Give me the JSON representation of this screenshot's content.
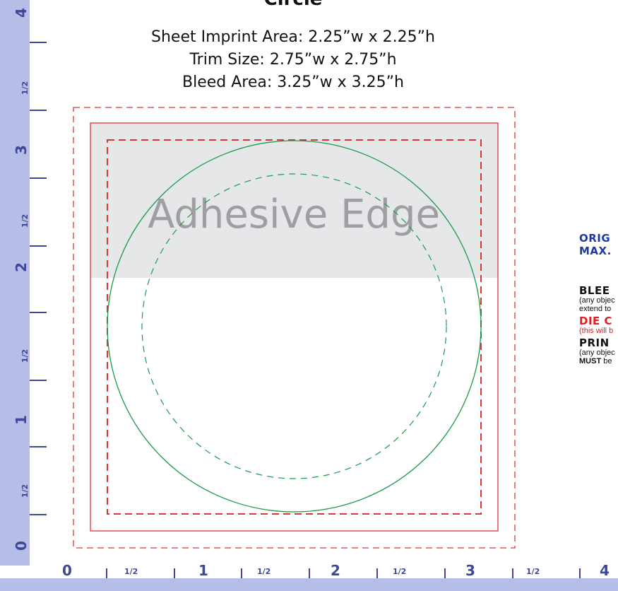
{
  "title": {
    "heading": "Circle",
    "imprint": "Sheet Imprint Area:  2.25”w x 2.25”h",
    "trim": "Trim Size:  2.75”w x 2.75”h",
    "bleed": "Bleed Area:  3.25”w x 3.25”h"
  },
  "diagram": {
    "adhesive_label": "Adhesive Edge"
  },
  "legend": {
    "orig_line1": "ORIG",
    "orig_line2": "MAX.",
    "bleed_heading": "BLEE",
    "bleed_note1": "(any objec",
    "bleed_note2": "extend to",
    "die_heading": "DIE C",
    "die_note": "(this will b",
    "print_heading": "PRIN",
    "print_note1": "(any objec",
    "print_note2_bold": "MUST",
    "print_note2_rest": "be"
  },
  "ruler": {
    "left_major": [
      "4",
      "3",
      "2",
      "1",
      "0"
    ],
    "left_half": [
      "1/2",
      "1/2",
      "1/2",
      "1/2"
    ],
    "bottom_major": [
      "0",
      "1",
      "2",
      "3",
      "4"
    ],
    "bottom_half": [
      "1/2",
      "1/2",
      "1/2",
      "1/2"
    ]
  },
  "colors": {
    "ruler": "#b6bde6",
    "ruler_text": "#3f4799",
    "die_cut": "#d93636",
    "circle": "#1c9a4a",
    "adhesive_fill": "#e6e7e8",
    "legend_blue": "#1e3a9e",
    "legend_red": "#e02020"
  }
}
